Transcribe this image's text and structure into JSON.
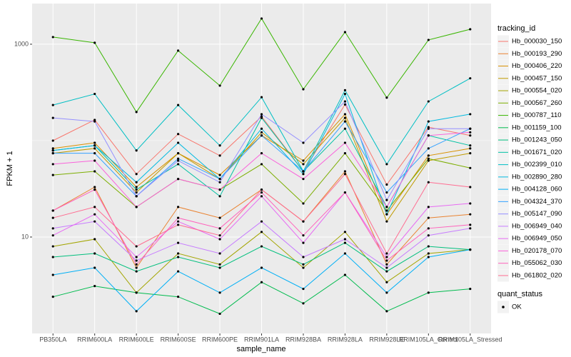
{
  "chart_data": {
    "type": "line",
    "x_label": "sample_name",
    "y_label": "FPKM + 1",
    "log_y": true,
    "grid": true,
    "categories": [
      "PB350LA",
      "RRIM600LA",
      "RRIM600LE",
      "RRIM600SE",
      "RRIM600PE",
      "RRIM901LA",
      "RRIM928BA",
      "RRIM928LA",
      "RRIM928LE",
      "RRIM105LA_Control",
      "RRIM105LA_Stressed"
    ],
    "ylim": [
      1,
      2640
    ],
    "yticks": [
      10,
      1000
    ],
    "y_minor_ticks": [
      100
    ],
    "legend_title": "tracking_id",
    "legend_position": "right",
    "shape_legend_title": "quant_status",
    "shape_legend_labels": [
      "OK"
    ],
    "point_color": "#000000",
    "series": [
      {
        "name": "Hb_000030_150",
        "color": "#F8766D",
        "values": [
          100,
          164,
          45,
          117,
          70,
          178,
          48,
          237,
          35,
          138,
          113
        ]
      },
      {
        "name": "Hb_000193_290",
        "color": "#EA8331",
        "values": [
          18.8,
          33,
          4.8,
          20.5,
          15.8,
          31,
          14.5,
          48,
          5.2,
          15.8,
          17.2
        ]
      },
      {
        "name": "Hb_000406_220",
        "color": "#D89000",
        "values": [
          83,
          95,
          33,
          74,
          44,
          113,
          62,
          188,
          17.2,
          70,
          83
        ]
      },
      {
        "name": "Hb_000457_150",
        "color": "#C09B00",
        "values": [
          74,
          83,
          29,
          74,
          40,
          122,
          57,
          172,
          14.5,
          62,
          74
        ]
      },
      {
        "name": "Hb_000554_020",
        "color": "#A3A500",
        "values": [
          8.0,
          9.5,
          2.65,
          6.75,
          5.2,
          11.3,
          4.8,
          11.3,
          3.4,
          6.75,
          7.4
        ]
      },
      {
        "name": "Hb_000567_260",
        "color": "#7CAE00",
        "values": [
          44,
          48,
          20.5,
          40,
          31,
          57,
          22.3,
          74,
          18.8,
          65,
          52
        ]
      },
      {
        "name": "Hb_000787_110",
        "color": "#39B600",
        "values": [
          1186,
          1035,
          198,
          858,
          372,
          1848,
          341,
          1336,
          279,
          1108,
          1430
        ]
      },
      {
        "name": "Hb_001159_100",
        "color": "#00BB4E",
        "values": [
          2.4,
          3.1,
          2.65,
          2.4,
          1.6,
          3.4,
          2.05,
          4.05,
          1.7,
          2.65,
          2.9
        ]
      },
      {
        "name": "Hb_001243_050",
        "color": "#00BF7D",
        "values": [
          6.2,
          6.75,
          4.4,
          6.2,
          4.8,
          8.0,
          5.2,
          8.7,
          4.4,
          8.0,
          7.4
        ]
      },
      {
        "name": "Hb_001671_020",
        "color": "#00C1A3",
        "values": [
          79,
          89,
          31,
          57,
          26.5,
          172,
          48,
          133,
          20.5,
          113,
          89
        ]
      },
      {
        "name": "Hb_002399_010",
        "color": "#00BFC4",
        "values": [
          234,
          305,
          79,
          234,
          89,
          282,
          48,
          333,
          57,
          255,
          443
        ]
      },
      {
        "name": "Hb_002890_280",
        "color": "#00BAE0",
        "values": [
          79,
          89,
          37,
          95,
          40,
          133,
          45,
          305,
          17.2,
          158,
          188
        ]
      },
      {
        "name": "Hb_004128_060",
        "color": "#00B0F6",
        "values": [
          4.05,
          4.8,
          1.7,
          4.4,
          2.65,
          4.8,
          2.9,
          6.75,
          2.65,
          6.2,
          7.4
        ]
      },
      {
        "name": "Hb_004324_370",
        "color": "#35A2FF",
        "values": [
          74,
          74,
          26.5,
          65,
          40,
          113,
          48,
          158,
          29,
          83,
          133
        ]
      },
      {
        "name": "Hb_005147_090",
        "color": "#9590FF",
        "values": [
          172,
          158,
          26.5,
          62,
          37,
          188,
          95,
          255,
          24.2,
          133,
          133
        ]
      },
      {
        "name": "Hb_006949_040",
        "color": "#C77CFF",
        "values": [
          12.3,
          14.5,
          5.7,
          8.7,
          6.75,
          14.5,
          6.2,
          9.5,
          4.8,
          10.4,
          12.3
        ]
      },
      {
        "name": "Hb_006949_050",
        "color": "#E76BF3",
        "values": [
          10.4,
          17.2,
          6.2,
          14.5,
          9.5,
          26.5,
          8.7,
          29,
          6.2,
          20.5,
          22.3
        ]
      },
      {
        "name": "Hb_020178_070",
        "color": "#FA62DB",
        "values": [
          57,
          62,
          20.5,
          40,
          31,
          74,
          40,
          95,
          20.5,
          113,
          122
        ]
      },
      {
        "name": "Hb_055062_030",
        "color": "#FF62BC",
        "values": [
          18.8,
          31,
          5.2,
          15.8,
          12.3,
          29,
          10.4,
          29,
          5.7,
          12.3,
          13.4
        ]
      },
      {
        "name": "Hb_061802_020",
        "color": "#FF6C91",
        "values": [
          15.8,
          20.5,
          8.0,
          13.4,
          10.4,
          31,
          14.5,
          45,
          6.75,
          37,
          33
        ]
      }
    ]
  }
}
